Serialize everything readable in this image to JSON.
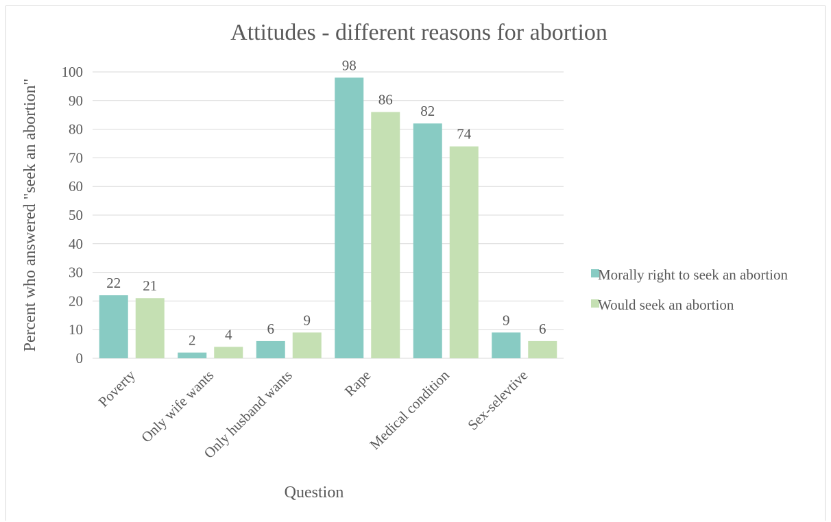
{
  "chart_data": {
    "type": "bar",
    "title": "Attitudes - different reasons for abortion",
    "xlabel": "Question",
    "ylabel": "Percent who answered  \"seek an abortion\"",
    "categories": [
      "Poverty",
      "Only wife wants",
      "Only husband wants",
      "Rape",
      "Medical condition",
      "Sex-selevtive"
    ],
    "series": [
      {
        "name": "Morally right to seek an abortion",
        "values": [
          22,
          2,
          6,
          98,
          82,
          9
        ],
        "value_labels": [
          "22",
          "2",
          "6",
          "98",
          "82",
          "9"
        ],
        "color": "#88cbc3"
      },
      {
        "name": "Would seek an abortion",
        "values": [
          21,
          4,
          9,
          86,
          74,
          6
        ],
        "value_labels": [
          "21",
          "4",
          "9",
          "86",
          "74",
          "6"
        ],
        "color": "#c5e0b3"
      }
    ],
    "ylim": [
      0,
      100
    ],
    "yticks": [
      0,
      10,
      20,
      30,
      40,
      50,
      60,
      70,
      80,
      90,
      100
    ],
    "ytick_labels": [
      "0",
      "10",
      "20",
      "30",
      "40",
      "50",
      "60",
      "70",
      "80",
      "90",
      "100"
    ],
    "grid": true,
    "gridline_color": "#d9d9d9",
    "legend_position": "right",
    "xtick_rotation": "-45"
  }
}
